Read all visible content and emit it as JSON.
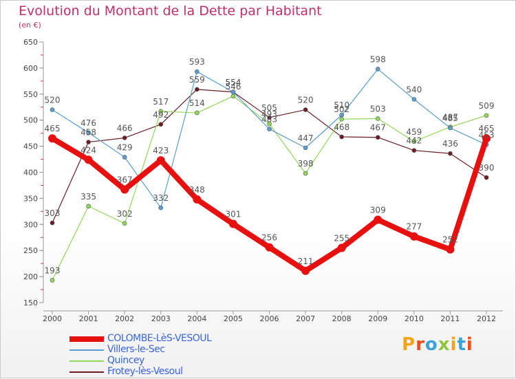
{
  "header": {
    "title": "Evolution du Montant de la Dette par Habitant",
    "subtitle": "(en €)"
  },
  "colors": {
    "title": "#c0316c",
    "axis": "#666666",
    "grid": "#dddddd"
  },
  "logo": {
    "text": "Proxiti",
    "letters": [
      {
        "ch": "P",
        "color": "#f5a31a"
      },
      {
        "ch": "r",
        "color": "#e94e1b"
      },
      {
        "ch": "o",
        "color": "#3aa3dc"
      },
      {
        "ch": "x",
        "color": "#8dc63f"
      },
      {
        "ch": "i",
        "color": "#f5a31a"
      },
      {
        "ch": "t",
        "color": "#3aa3dc"
      },
      {
        "ch": "i",
        "color": "#e94e1b"
      }
    ]
  },
  "chart_data": {
    "type": "line",
    "title": "Evolution du Montant de la Dette par Habitant",
    "subtitle": "(en €)",
    "x": [
      "2000",
      "2001",
      "2002",
      "2003",
      "2004",
      "2005",
      "2006",
      "2007",
      "2008",
      "2009",
      "2010",
      "2011",
      "2012"
    ],
    "ylim": [
      150,
      650
    ],
    "yticks": [
      150,
      200,
      250,
      300,
      350,
      400,
      450,
      500,
      550,
      600,
      650
    ],
    "grid": false,
    "legend_position": "bottom-left",
    "series": [
      {
        "name": "COLOMBE-LèS-VESOUL",
        "color": "#e8100f",
        "width": 8,
        "marker": 6,
        "values": [
          465,
          424,
          367,
          423,
          348,
          301,
          256,
          211,
          255,
          309,
          277,
          252,
          465
        ],
        "labels": [
          "465",
          "424",
          "367",
          "423",
          "348",
          "301",
          "256",
          "211",
          "255",
          "309",
          "277",
          "252",
          "465"
        ]
      },
      {
        "name": "Villers-le-Sec",
        "color": "#5a9fd0",
        "width": 1.2,
        "marker": 3,
        "values": [
          520,
          476,
          429,
          332,
          593,
          554,
          483,
          447,
          510,
          598,
          540,
          485,
          453
        ],
        "labels": [
          "520",
          "476",
          "429",
          "332",
          "593",
          "554",
          "483",
          "447",
          "510",
          "598",
          "540",
          "485",
          "453"
        ]
      },
      {
        "name": "Quincey",
        "color": "#90d85a",
        "width": 1.2,
        "marker": 3,
        "values": [
          193,
          335,
          302,
          517,
          514,
          546,
          493,
          398,
          502,
          503,
          459,
          487,
          509
        ],
        "labels": [
          "193",
          "335",
          "302",
          "517",
          "514",
          "546",
          "493",
          "398",
          "502",
          "503",
          "459",
          "487",
          "509"
        ]
      },
      {
        "name": "Frotey-lès-Vesoul",
        "color": "#6b1c24",
        "width": 1.2,
        "marker": 3,
        "values": [
          303,
          458,
          466,
          492,
          559,
          554,
          505,
          520,
          468,
          467,
          442,
          436,
          390
        ],
        "labels": [
          "303",
          "458",
          "466",
          "492",
          "559",
          "554",
          "505",
          "520",
          "468",
          "467",
          "442",
          "436",
          "390"
        ]
      }
    ]
  }
}
